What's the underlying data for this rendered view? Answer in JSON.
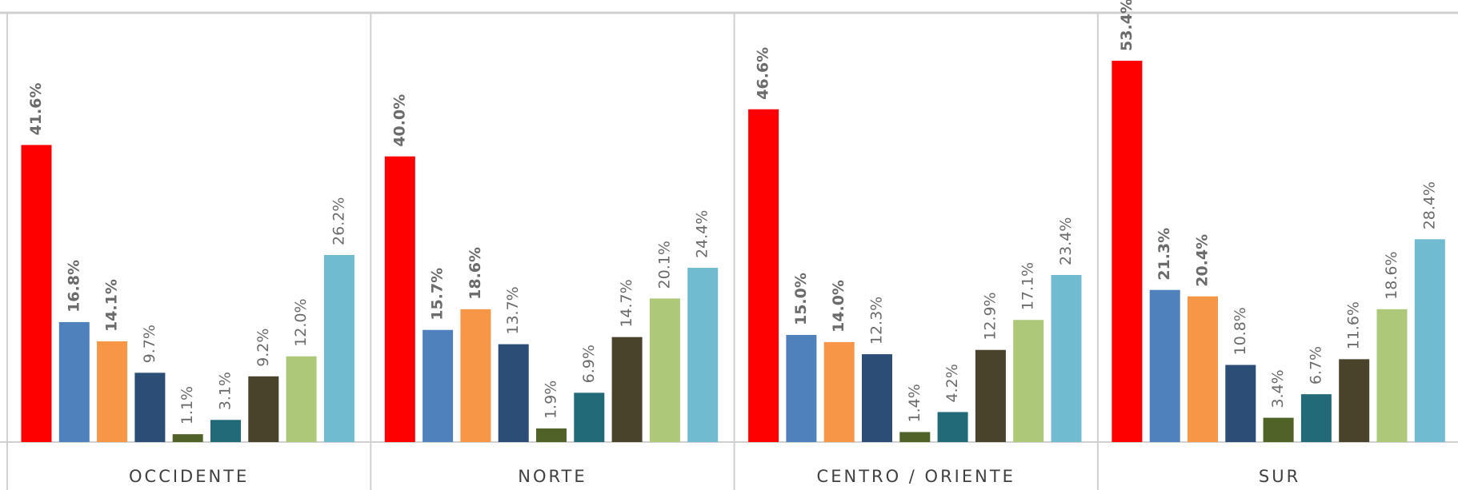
{
  "chart_data": {
    "type": "bar",
    "categories": [
      "OCCIDENTE",
      "NORTE",
      "CENTRO / ORIENTE",
      "SUR"
    ],
    "ylim": [
      0,
      60
    ],
    "series": [
      {
        "color": "#ff0000",
        "label_bold": true,
        "values": [
          41.6,
          40.0,
          46.6,
          53.4
        ],
        "value_labels": [
          "41.6%",
          "40.0%",
          "46.6%",
          "53.4%"
        ]
      },
      {
        "color": "#4f81bd",
        "label_bold": true,
        "values": [
          16.8,
          15.7,
          15.0,
          21.3
        ],
        "value_labels": [
          "16.8%",
          "15.7%",
          "15.0%",
          "21.3%"
        ]
      },
      {
        "color": "#f79646",
        "label_bold": true,
        "values": [
          14.1,
          18.6,
          14.0,
          20.4
        ],
        "value_labels": [
          "14.1%",
          "18.6%",
          "14.0%",
          "20.4%"
        ]
      },
      {
        "color": "#2c4d75",
        "label_bold": false,
        "values": [
          9.7,
          13.7,
          12.3,
          10.8
        ],
        "value_labels": [
          "9.7%",
          "13.7%",
          "12.3%",
          "10.8%"
        ]
      },
      {
        "color": "#4f6228",
        "label_bold": false,
        "values": [
          1.1,
          1.9,
          1.4,
          3.4
        ],
        "value_labels": [
          "1.1%",
          "1.9%",
          "1.4%",
          "3.4%"
        ]
      },
      {
        "color": "#226a78",
        "label_bold": false,
        "values": [
          3.1,
          6.9,
          4.2,
          6.7
        ],
        "value_labels": [
          "3.1%",
          "6.9%",
          "4.2%",
          "6.7%"
        ]
      },
      {
        "color": "#49432b",
        "label_bold": false,
        "values": [
          9.2,
          14.7,
          12.9,
          11.6
        ],
        "value_labels": [
          "9.2%",
          "14.7%",
          "12.9%",
          "11.6%"
        ]
      },
      {
        "color": "#acc878",
        "label_bold": false,
        "values": [
          12.0,
          20.1,
          17.1,
          18.6
        ],
        "value_labels": [
          "12.0%",
          "20.1%",
          "17.1%",
          "18.6%"
        ]
      },
      {
        "color": "#70bbd0",
        "label_bold": false,
        "values": [
          26.2,
          24.4,
          23.4,
          28.4
        ],
        "value_labels": [
          "26.2%",
          "24.4%",
          "23.4%",
          "28.4%"
        ]
      }
    ]
  }
}
